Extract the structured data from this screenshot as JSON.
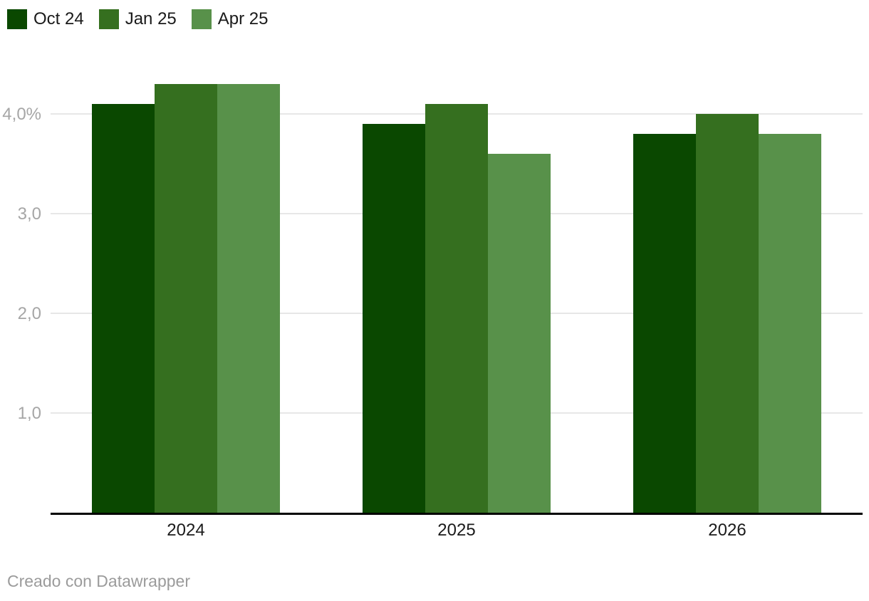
{
  "legend": {
    "items": [
      {
        "label": "Oct 24",
        "color": "#0a4800"
      },
      {
        "label": "Jan 25",
        "color": "#356f1f"
      },
      {
        "label": "Apr 25",
        "color": "#58914a"
      }
    ]
  },
  "chart_data": {
    "type": "bar",
    "categories": [
      "2024",
      "2025",
      "2026"
    ],
    "series": [
      {
        "name": "Oct 24",
        "color": "#0a4800",
        "values": [
          4.1,
          3.9,
          3.8
        ]
      },
      {
        "name": "Jan 25",
        "color": "#356f1f",
        "values": [
          4.3,
          4.1,
          4.0
        ]
      },
      {
        "name": "Apr 25",
        "color": "#58914a",
        "values": [
          4.3,
          3.6,
          3.8
        ]
      }
    ],
    "unit": "%",
    "yticks": [
      {
        "value": 4,
        "label": "4,0%"
      },
      {
        "value": 3,
        "label": "3,0"
      },
      {
        "value": 2,
        "label": "2,0"
      },
      {
        "value": 1,
        "label": "1,0"
      }
    ],
    "ylim": [
      0,
      4.6
    ],
    "grid": true,
    "legend_position": "top-left"
  },
  "footer": {
    "credit": "Creado con Datawrapper"
  },
  "colors": {
    "background": "#ffffff",
    "axis_line": "#000000",
    "gridline": "#e7e7e7",
    "tick_text": "#a6a6a6",
    "category_text": "#1b1b1b",
    "legend_text": "#1a1a1a",
    "footer_text": "#9b9b9b"
  }
}
